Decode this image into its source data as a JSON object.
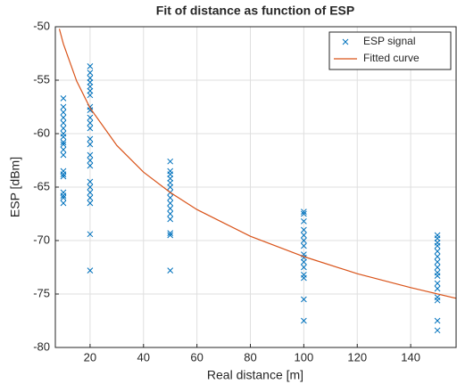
{
  "chart_data": {
    "type": "scatter",
    "title": "Fit of distance as function of ESP",
    "x_label": "Real distance [m]",
    "y_label": "ESP [dBm]",
    "xlim": [
      7,
      157
    ],
    "ylim": [
      -80,
      -50
    ],
    "xticks": [
      20,
      40,
      60,
      80,
      100,
      120,
      140
    ],
    "yticks": [
      -80,
      -75,
      -70,
      -65,
      -60,
      -55,
      -50
    ],
    "grid": true,
    "legend": "upper right",
    "series": [
      {
        "name": "ESP signal",
        "color": "#0072bd",
        "kind": "markers",
        "x": [
          10,
          10,
          10,
          10,
          10,
          10,
          10,
          10,
          10,
          10,
          10,
          10,
          10,
          10,
          10,
          10,
          10,
          10,
          10,
          20,
          20,
          20,
          20,
          20,
          20,
          20,
          20,
          20,
          20,
          20,
          20,
          20,
          20,
          20,
          20,
          20,
          20,
          20,
          20,
          20,
          20,
          20,
          20,
          50,
          50,
          50,
          50,
          50,
          50,
          50,
          50,
          50,
          50,
          50,
          50,
          50,
          50,
          50,
          100,
          100,
          100,
          100,
          100,
          100,
          100,
          100,
          100,
          100,
          100,
          100,
          100,
          100,
          100,
          150,
          150,
          150,
          150,
          150,
          150,
          150,
          150,
          150,
          150,
          150,
          150,
          150,
          150,
          150,
          150
        ],
        "values": [
          -56.7,
          -57.5,
          -58,
          -58.5,
          -59,
          -59.5,
          -60,
          -60.3,
          -60.8,
          -61,
          -61.5,
          -62,
          -63.5,
          -63.8,
          -64,
          -65.5,
          -65.8,
          -66,
          -66.5,
          -53.7,
          -54.3,
          -54.8,
          -55.2,
          -55.6,
          -56,
          -56.4,
          -57.5,
          -57.8,
          -58.5,
          -59,
          -59.5,
          -60.5,
          -61,
          -62,
          -62.5,
          -63,
          -64.5,
          -65,
          -65.5,
          -66,
          -66.5,
          -69.4,
          -72.8,
          -62.6,
          -63.5,
          -63.8,
          -64.2,
          -64.6,
          -65,
          -65.5,
          -66,
          -66.5,
          -67,
          -67.5,
          -68,
          -69.3,
          -69.5,
          -72.8,
          -67.3,
          -67.5,
          -68.2,
          -69,
          -69.5,
          -70,
          -70.5,
          -71.3,
          -71.6,
          -72,
          -72.5,
          -73.2,
          -73.5,
          -75.5,
          -77.5,
          -69.5,
          -69.8,
          -70.2,
          -70.5,
          -71,
          -71.5,
          -72,
          -72.5,
          -73,
          -73.3,
          -74,
          -74.5,
          -75.3,
          -75.6,
          -77.5,
          -78.4
        ]
      },
      {
        "name": "Fitted curve",
        "color": "#d95319",
        "kind": "line",
        "x": [
          8.5,
          10,
          15,
          20,
          30,
          40,
          50,
          60,
          80,
          100,
          120,
          140,
          157
        ],
        "values": [
          -50.2,
          -51.6,
          -55.1,
          -57.6,
          -61.1,
          -63.6,
          -65.5,
          -67.1,
          -69.6,
          -71.5,
          -73.1,
          -74.4,
          -75.4
        ]
      }
    ]
  }
}
